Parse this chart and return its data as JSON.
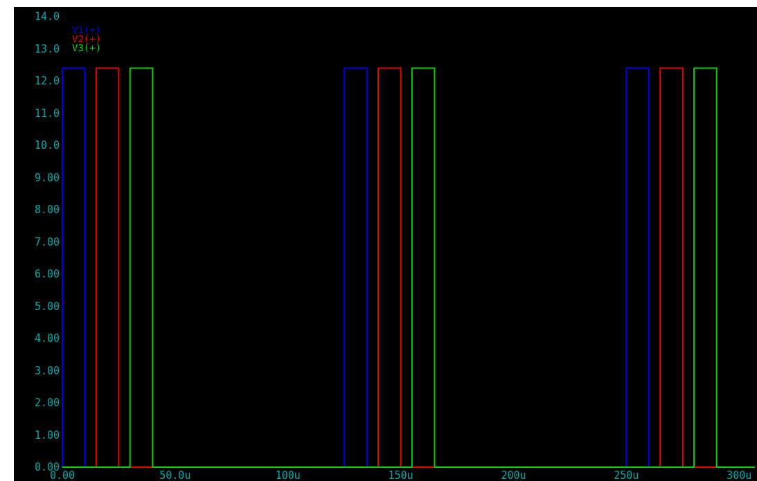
{
  "chart_data": {
    "type": "step",
    "xlim": [
      0,
      307
    ],
    "ylim": [
      0,
      14
    ],
    "xticks": [
      {
        "value": 0,
        "label": "0.00"
      },
      {
        "value": 50,
        "label": "50.0u"
      },
      {
        "value": 100,
        "label": "100u"
      },
      {
        "value": 150,
        "label": "150u"
      },
      {
        "value": 200,
        "label": "200u"
      },
      {
        "value": 250,
        "label": "250u"
      },
      {
        "value": 300,
        "label": "300u"
      }
    ],
    "yticks": [
      {
        "value": 0,
        "label": "0.00"
      },
      {
        "value": 1,
        "label": "1.00"
      },
      {
        "value": 2,
        "label": "2.00"
      },
      {
        "value": 3,
        "label": "3.00"
      },
      {
        "value": 4,
        "label": "4.00"
      },
      {
        "value": 5,
        "label": "5.00"
      },
      {
        "value": 6,
        "label": "6.00"
      },
      {
        "value": 7,
        "label": "7.00"
      },
      {
        "value": 8,
        "label": "8.00"
      },
      {
        "value": 9,
        "label": "9.00"
      },
      {
        "value": 10,
        "label": "10.0"
      },
      {
        "value": 11,
        "label": "11.0"
      },
      {
        "value": 12,
        "label": "12.0"
      },
      {
        "value": 13,
        "label": "13.0"
      },
      {
        "value": 14,
        "label": "14.0"
      }
    ],
    "legend": "top left",
    "series": [
      {
        "name": "V1(+)",
        "color": "#0000e6",
        "x": [
          0,
          0,
          10,
          125,
          135,
          250,
          260,
          307
        ],
        "values": [
          0,
          12.4,
          0,
          12.4,
          0,
          12.4,
          0,
          0
        ]
      },
      {
        "name": "V2(+)",
        "color": "#e60000",
        "x": [
          0,
          15,
          25,
          140,
          150,
          265,
          275,
          307
        ],
        "values": [
          0,
          12.4,
          0,
          12.4,
          0,
          12.4,
          0,
          0
        ]
      },
      {
        "name": "V3(+)",
        "color": "#00d200",
        "x": [
          0,
          30,
          40,
          155,
          165,
          280,
          290,
          307
        ],
        "values": [
          0,
          12.4,
          0,
          12.4,
          0,
          12.4,
          0,
          0
        ]
      }
    ]
  }
}
